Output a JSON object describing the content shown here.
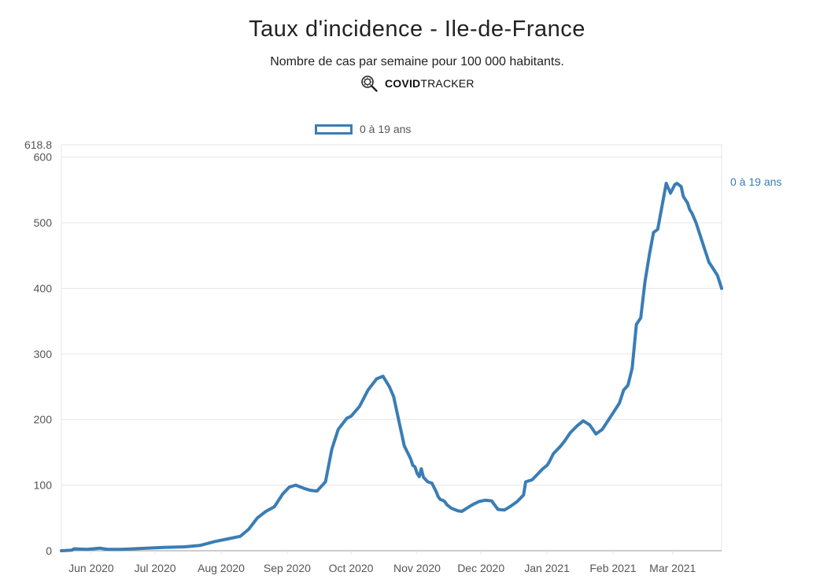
{
  "header": {
    "title": "Taux d'incidence - Ile-de-France",
    "subtitle": "Nombre de cas par semaine pour 100 000 habitants.",
    "brand_bold": "COVID",
    "brand_light": "TRACKER"
  },
  "colors": {
    "series": "#3a7db5",
    "grid": "#e6e6e6",
    "axis": "#999999"
  },
  "chart_data": {
    "type": "line",
    "title": "Taux d'incidence - Ile-de-France",
    "subtitle": "Nombre de cas par semaine pour 100 000 habitants.",
    "xlabel": "",
    "ylabel": "",
    "ylim": [
      0,
      618.8
    ],
    "y_max_label": "618.8",
    "yticks": [
      0,
      100,
      200,
      300,
      400,
      500,
      600
    ],
    "xticks": [
      {
        "day": 14,
        "label": "Jun 2020"
      },
      {
        "day": 44,
        "label": "Jul 2020"
      },
      {
        "day": 75,
        "label": "Aug 2020"
      },
      {
        "day": 106,
        "label": "Sep 2020"
      },
      {
        "day": 136,
        "label": "Oct 2020"
      },
      {
        "day": 167,
        "label": "Nov 2020"
      },
      {
        "day": 197,
        "label": "Dec 2020"
      },
      {
        "day": 228,
        "label": "Jan 2021"
      },
      {
        "day": 259,
        "label": "Feb 2021"
      },
      {
        "day": 287,
        "label": "Mar 2021"
      }
    ],
    "grid": true,
    "legend": "top",
    "series": [
      {
        "name": "0 à 19 ans",
        "end_label": "0 à 19 ans",
        "x_days": [
          0,
          5,
          6,
          12,
          15,
          18,
          22,
          28,
          34,
          40,
          48,
          58,
          65,
          72,
          78,
          84,
          88,
          92,
          96,
          100,
          104,
          107,
          110,
          114,
          117,
          120,
          124,
          127,
          130,
          134,
          136,
          140,
          144,
          148,
          151,
          154,
          156,
          158,
          161,
          164,
          165,
          166,
          167,
          168,
          169,
          170,
          172,
          174,
          176,
          177,
          178,
          179,
          180,
          181,
          183,
          186,
          188,
          190,
          193,
          196,
          199,
          202,
          205,
          208,
          211,
          214,
          217,
          218,
          221,
          224,
          226,
          228,
          229,
          231,
          234,
          236,
          239,
          242,
          245,
          248,
          251,
          254,
          257,
          260,
          262,
          264,
          266,
          268,
          270,
          272,
          274,
          276,
          278,
          280,
          282,
          284,
          286,
          288,
          289,
          291,
          292,
          294,
          295,
          296,
          298,
          299,
          301,
          302,
          303,
          304,
          306,
          308,
          309,
          310
        ],
        "values": [
          0,
          1,
          3,
          2,
          3,
          4,
          2,
          2,
          3,
          4,
          5,
          6,
          8,
          14,
          18,
          22,
          33,
          50,
          60,
          67,
          87,
          97,
          100,
          95,
          92,
          91,
          105,
          155,
          185,
          202,
          205,
          220,
          245,
          262,
          266,
          250,
          235,
          205,
          160,
          140,
          130,
          128,
          118,
          113,
          125,
          112,
          105,
          103,
          90,
          82,
          78,
          77,
          75,
          70,
          65,
          61,
          60,
          64,
          70,
          75,
          77,
          76,
          63,
          62,
          68,
          75,
          85,
          105,
          108,
          118,
          125,
          130,
          135,
          148,
          158,
          166,
          180,
          190,
          198,
          192,
          178,
          185,
          200,
          215,
          225,
          245,
          252,
          278,
          345,
          355,
          410,
          450,
          485,
          490,
          525,
          560,
          545,
          558,
          560,
          555,
          540,
          530,
          520,
          515,
          500,
          490,
          470,
          460,
          450,
          440,
          430,
          420,
          410,
          400
        ]
      }
    ]
  },
  "legend": {
    "label": "0 à 19 ans"
  }
}
